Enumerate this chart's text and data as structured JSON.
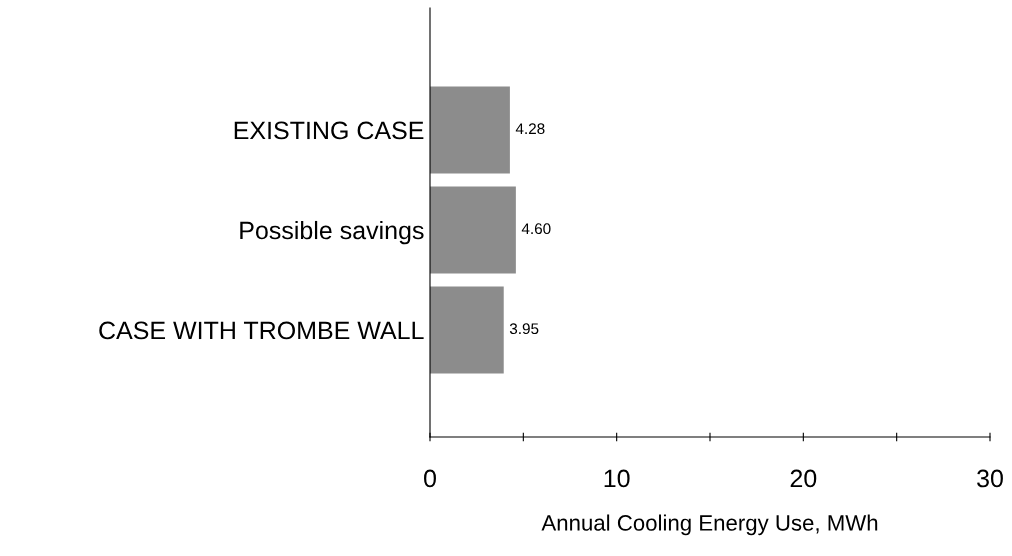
{
  "chart_data": {
    "type": "bar",
    "orientation": "horizontal",
    "xlabel": "Annual Cooling Energy Use, MWh",
    "categories": [
      "EXISTING CASE",
      "Possible savings",
      "CASE WITH TROMBE WALL"
    ],
    "values": [
      4.28,
      4.6,
      3.95
    ],
    "value_labels": [
      "4.28",
      "4.60",
      "3.95"
    ],
    "color": "#8c8c8c",
    "xlim": [
      0,
      30
    ],
    "xticks": [
      0,
      {
        "value": 5,
        "label": null
      },
      10,
      {
        "value": 15,
        "label": null
      },
      20,
      {
        "value": 25,
        "label": null
      },
      30
    ],
    "grid": false,
    "legend": false
  }
}
